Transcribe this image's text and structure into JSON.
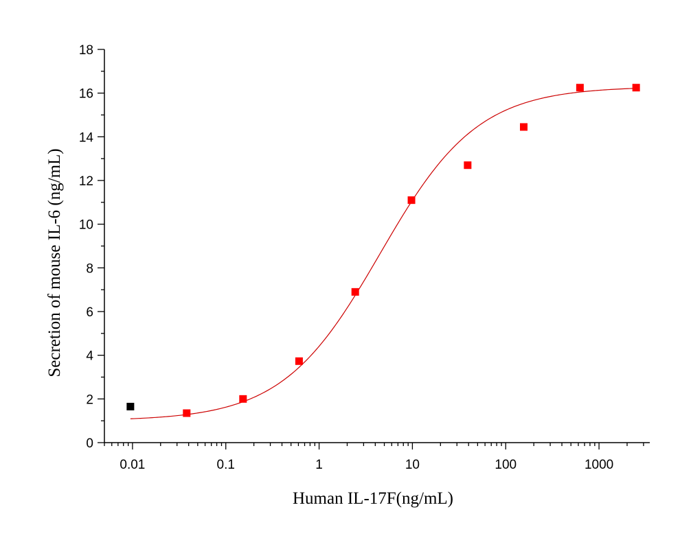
{
  "chart_data": {
    "type": "scatter",
    "title": "",
    "xlabel": "Human IL-17F(ng/mL)",
    "ylabel": "Secretion of mouse IL-6 (ng/mL)",
    "x_scale": "log",
    "xlim": [
      0.005,
      3500
    ],
    "ylim": [
      0,
      18
    ],
    "x_major_ticks": [
      0.01,
      0.1,
      1,
      10,
      100,
      1000
    ],
    "x_tick_labels": [
      "0.01",
      "0.1",
      "1",
      "10",
      "100",
      "1000"
    ],
    "y_major_ticks": [
      0,
      2,
      4,
      6,
      8,
      10,
      12,
      14,
      16,
      18
    ],
    "y_tick_labels": [
      "0",
      "2",
      "4",
      "6",
      "8",
      "10",
      "12",
      "14",
      "16",
      "18"
    ],
    "grid": false,
    "legend": "none",
    "series": [
      {
        "marker": "square",
        "color": "#ff0000",
        "points": [
          {
            "x": 0.0381,
            "y": 1.35
          },
          {
            "x": 0.153,
            "y": 2.0
          },
          {
            "x": 0.61,
            "y": 3.73
          },
          {
            "x": 2.44,
            "y": 6.9
          },
          {
            "x": 9.77,
            "y": 11.1
          },
          {
            "x": 39.1,
            "y": 12.7
          },
          {
            "x": 156,
            "y": 14.45
          },
          {
            "x": 625,
            "y": 16.25
          },
          {
            "x": 2500,
            "y": 16.25
          }
        ]
      },
      {
        "marker": "square",
        "color": "#000000",
        "points": [
          {
            "x": 0.0095,
            "y": 1.65
          }
        ]
      }
    ],
    "fit_curve": {
      "type": "4PL",
      "color": "#cc0000",
      "x_range": [
        0.0095,
        2500
      ],
      "bottom": 1.0,
      "top": 16.3,
      "ec50": 4.5,
      "hill": 0.83
    }
  }
}
